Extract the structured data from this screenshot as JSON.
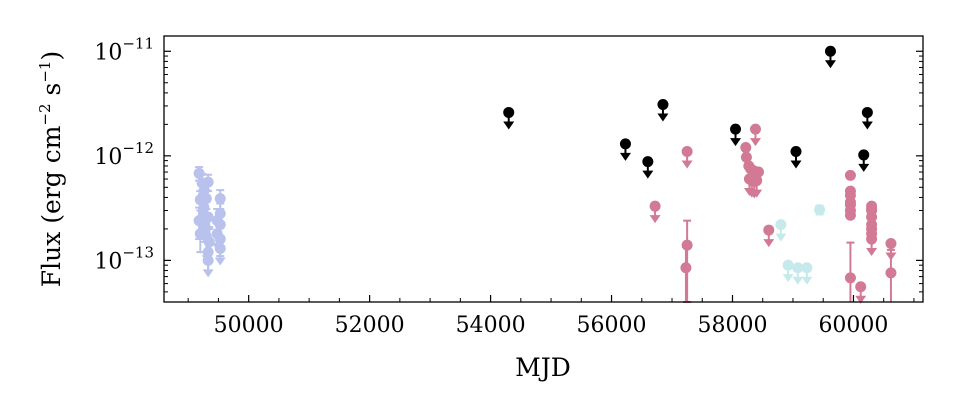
{
  "chart_data": {
    "type": "scatter",
    "title": "",
    "xlabel": "MJD",
    "ylabel": "Flux (erg cm",
    "ylabel_exp1": "−2",
    "ylabel_mid": " s",
    "ylabel_exp2": "−1",
    "ylabel_end": ")",
    "xlim": [
      48600,
      61150
    ],
    "ylim": [
      4e-14,
      1.4e-11
    ],
    "yscale": "log",
    "grid": false,
    "x_ticks": [
      50000,
      52000,
      54000,
      56000,
      58000,
      60000
    ],
    "x_tick_labels": [
      "50000",
      "52000",
      "54000",
      "56000",
      "58000",
      "60000"
    ],
    "y_ticks": [
      1e-13,
      1e-12,
      1e-11
    ],
    "y_tick_bases": [
      "10",
      "10",
      "10"
    ],
    "y_tick_exps": [
      "−13",
      "−12",
      "−11"
    ],
    "series": [
      {
        "color": "#b8c2ec",
        "points": [
          {
            "x": 49180,
            "y": 6.8e-13,
            "err": 1e-13
          },
          {
            "x": 49230,
            "y": 5.5e-13,
            "err": 1.2e-13
          },
          {
            "x": 49260,
            "y": 4.6e-13,
            "err": 1e-13
          },
          {
            "x": 49200,
            "y": 3.8e-13,
            "err": 8e-14
          },
          {
            "x": 49300,
            "y": 3.9e-13,
            "err": 8e-14
          },
          {
            "x": 49330,
            "y": 5.6e-13,
            "err": 1e-13
          },
          {
            "x": 49250,
            "y": 2.7e-13,
            "err": 7e-14
          },
          {
            "x": 49180,
            "y": 2.4e-13,
            "err": 8e-14
          },
          {
            "x": 49300,
            "y": 1.7e-13,
            "err": 6e-14
          },
          {
            "x": 49200,
            "y": 1.8e-13,
            "err": 6e-14
          },
          {
            "x": 49350,
            "y": 1.5e-13,
            "err": 5e-14
          },
          {
            "x": 49280,
            "y": 2.1e-13,
            "err": 6e-14
          },
          {
            "x": 49330,
            "y": 1.2e-13,
            "err": 4e-14
          },
          {
            "x": 49530,
            "y": 3.9e-13,
            "err": 8e-14
          },
          {
            "x": 49530,
            "y": 2.8e-13,
            "err": 7e-14
          },
          {
            "x": 49530,
            "y": 2.2e-13,
            "err": 6e-14
          },
          {
            "x": 49530,
            "y": 1.6e-13,
            "err": 5e-14
          },
          {
            "x": 49480,
            "y": 2.4e-13,
            "err": 7e-14
          },
          {
            "x": 49260,
            "y": 3.2e-13,
            "ul": true
          },
          {
            "x": 49330,
            "y": 2.6e-13,
            "ul": true
          },
          {
            "x": 49330,
            "y": 1e-13,
            "ul": true
          },
          {
            "x": 49530,
            "y": 1.3e-13,
            "ul": true
          },
          {
            "x": 49480,
            "y": 1.8e-13,
            "ul": true
          }
        ]
      },
      {
        "color": "#000000",
        "points": [
          {
            "x": 54300,
            "y": 2.6e-12,
            "ul": true
          },
          {
            "x": 56230,
            "y": 1.3e-12,
            "ul": true
          },
          {
            "x": 56600,
            "y": 8.8e-13,
            "ul": true
          },
          {
            "x": 56850,
            "y": 3.1e-12,
            "ul": true
          },
          {
            "x": 58050,
            "y": 1.8e-12,
            "ul": true
          },
          {
            "x": 59050,
            "y": 1.1e-12,
            "ul": true
          },
          {
            "x": 59620,
            "y": 1e-11,
            "ul": true
          },
          {
            "x": 60170,
            "y": 1.02e-12,
            "ul": true
          },
          {
            "x": 60230,
            "y": 2.6e-12,
            "ul": true
          }
        ]
      },
      {
        "color": "#d27a95",
        "points": [
          {
            "x": 56720,
            "y": 3.3e-13,
            "ul": true
          },
          {
            "x": 57250,
            "y": 1.1e-12,
            "ul": true
          },
          {
            "x": 57250,
            "y": 1.4e-13,
            "err": 1e-13
          },
          {
            "x": 57230,
            "y": 8.5e-14,
            "err": 5e-14
          },
          {
            "x": 58220,
            "y": 1.2e-12
          },
          {
            "x": 58230,
            "y": 9.7e-13
          },
          {
            "x": 58270,
            "y": 8e-13
          },
          {
            "x": 58300,
            "y": 7.5e-13
          },
          {
            "x": 58350,
            "y": 7.2e-13
          },
          {
            "x": 58390,
            "y": 7e-13
          },
          {
            "x": 58430,
            "y": 7e-13
          },
          {
            "x": 58380,
            "y": 1.8e-12,
            "ul": true
          },
          {
            "x": 58280,
            "y": 6e-13,
            "ul": true
          },
          {
            "x": 58320,
            "y": 5.8e-13,
            "ul": true
          },
          {
            "x": 58360,
            "y": 5.7e-13,
            "ul": true
          },
          {
            "x": 58400,
            "y": 5.8e-13,
            "ul": true
          },
          {
            "x": 58600,
            "y": 1.95e-13,
            "ul": true
          },
          {
            "x": 59950,
            "y": 6.5e-13
          },
          {
            "x": 59950,
            "y": 4.2e-13
          },
          {
            "x": 59950,
            "y": 3.4e-13
          },
          {
            "x": 59950,
            "y": 3e-13
          },
          {
            "x": 59950,
            "y": 2.7e-13
          },
          {
            "x": 59950,
            "y": 6.8e-14,
            "err": 8e-14
          },
          {
            "x": 59950,
            "y": 4.6e-13,
            "ul": true
          },
          {
            "x": 59950,
            "y": 3.6e-13,
            "ul": true
          },
          {
            "x": 60120,
            "y": 5.6e-14,
            "ul": true
          },
          {
            "x": 60300,
            "y": 3.3e-13
          },
          {
            "x": 60300,
            "y": 3e-13
          },
          {
            "x": 60300,
            "y": 2.6e-13
          },
          {
            "x": 60300,
            "y": 2.2e-13
          },
          {
            "x": 60300,
            "y": 1.8e-13
          },
          {
            "x": 60300,
            "y": 3.1e-13,
            "ul": true
          },
          {
            "x": 60300,
            "y": 2e-13,
            "ul": true
          },
          {
            "x": 60300,
            "y": 1.6e-13,
            "ul": true
          },
          {
            "x": 60620,
            "y": 1.45e-13,
            "ul": true
          },
          {
            "x": 60620,
            "y": 7.6e-14,
            "err": 5e-14
          }
        ]
      },
      {
        "color": "#c6eaec",
        "points": [
          {
            "x": 58800,
            "y": 2.2e-13,
            "ul": true
          },
          {
            "x": 58920,
            "y": 9e-14,
            "ul": true
          },
          {
            "x": 59080,
            "y": 8.5e-14,
            "ul": true
          },
          {
            "x": 59230,
            "y": 8.5e-14,
            "ul": true
          },
          {
            "x": 59440,
            "y": 3.05e-13,
            "err": 3e-14
          }
        ]
      }
    ]
  }
}
